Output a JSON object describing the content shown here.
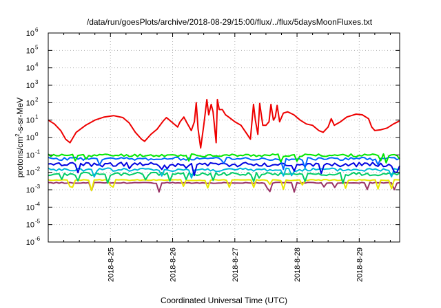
{
  "chart_data": {
    "type": "line",
    "title": "/data/run/goesPlots/archive/2018-08-29/15:00/flux/../flux/5daysMoonFluxes.txt",
    "xlabel": "Coordinated Universal Time (UTC)",
    "ylabel": {
      "prefix": "protons/cm",
      "sup": "2",
      "suffix": "-s-sr-MeV"
    },
    "yscale": "log",
    "ylim": [
      1e-06,
      1000000.0
    ],
    "xlim": [
      24.0,
      29.65
    ],
    "grid": true,
    "legend": "none",
    "y_ticks": [
      {
        "value": 1e-06,
        "base": "10",
        "exp": "-6"
      },
      {
        "value": 1e-05,
        "base": "10",
        "exp": "-5"
      },
      {
        "value": 0.0001,
        "base": "10",
        "exp": "-4"
      },
      {
        "value": 0.001,
        "base": "10",
        "exp": "-3"
      },
      {
        "value": 0.01,
        "base": "10",
        "exp": "-2"
      },
      {
        "value": 0.1,
        "base": "10",
        "exp": "-1"
      },
      {
        "value": 1,
        "base": "10",
        "exp": "0"
      },
      {
        "value": 10,
        "base": "10",
        "exp": "1"
      },
      {
        "value": 100,
        "base": "10",
        "exp": "2"
      },
      {
        "value": 1000.0,
        "base": "10",
        "exp": "3"
      },
      {
        "value": 10000.0,
        "base": "10",
        "exp": "4"
      },
      {
        "value": 100000.0,
        "base": "10",
        "exp": "5"
      },
      {
        "value": 1000000.0,
        "base": "10",
        "exp": "6"
      }
    ],
    "x_ticks": [
      {
        "value": 25.0,
        "label": "2018-8-25"
      },
      {
        "value": 26.0,
        "label": "2018-8-26"
      },
      {
        "value": 27.0,
        "label": "2018-8-27"
      },
      {
        "value": 28.0,
        "label": "2018-8-28"
      },
      {
        "value": 29.0,
        "label": "2018-8-29"
      }
    ],
    "series": [
      {
        "color": "#ee0000",
        "kind": "red",
        "points": [
          [
            24.0,
            10
          ],
          [
            24.1,
            6
          ],
          [
            24.2,
            2.5
          ],
          [
            24.28,
            0.8
          ],
          [
            24.35,
            0.5
          ],
          [
            24.45,
            2
          ],
          [
            24.6,
            5
          ],
          [
            24.75,
            10
          ],
          [
            24.9,
            15
          ],
          [
            25.05,
            18
          ],
          [
            25.2,
            14
          ],
          [
            25.3,
            7
          ],
          [
            25.4,
            2
          ],
          [
            25.5,
            0.8
          ],
          [
            25.55,
            0.6
          ],
          [
            25.65,
            1.5
          ],
          [
            25.75,
            3
          ],
          [
            25.85,
            9
          ],
          [
            25.9,
            14
          ],
          [
            25.95,
            10
          ],
          [
            26.0,
            7
          ],
          [
            26.08,
            4
          ],
          [
            26.12,
            8
          ],
          [
            26.18,
            15
          ],
          [
            26.22,
            8
          ],
          [
            26.3,
            2.5
          ],
          [
            26.35,
            8
          ],
          [
            26.38,
            100
          ],
          [
            26.41,
            3
          ],
          [
            26.45,
            0.25
          ],
          [
            26.5,
            5
          ],
          [
            26.55,
            150
          ],
          [
            26.58,
            20
          ],
          [
            26.62,
            80
          ],
          [
            26.65,
            30
          ],
          [
            26.7,
            0.5
          ],
          [
            26.72,
            150
          ],
          [
            26.75,
            40
          ],
          [
            26.8,
            40
          ],
          [
            26.85,
            20
          ],
          [
            26.9,
            15
          ],
          [
            27.0,
            8
          ],
          [
            27.1,
            5
          ],
          [
            27.2,
            1.5
          ],
          [
            27.25,
            0.8
          ],
          [
            27.3,
            80
          ],
          [
            27.33,
            10
          ],
          [
            27.37,
            1.5
          ],
          [
            27.4,
            90
          ],
          [
            27.45,
            5
          ],
          [
            27.5,
            5
          ],
          [
            27.55,
            8
          ],
          [
            27.58,
            80
          ],
          [
            27.62,
            10
          ],
          [
            27.65,
            15
          ],
          [
            27.68,
            70
          ],
          [
            27.72,
            8
          ],
          [
            27.78,
            25
          ],
          [
            27.85,
            30
          ],
          [
            27.95,
            20
          ],
          [
            28.05,
            10
          ],
          [
            28.15,
            6
          ],
          [
            28.25,
            5
          ],
          [
            28.35,
            2.5
          ],
          [
            28.42,
            2
          ],
          [
            28.5,
            4
          ],
          [
            28.55,
            12
          ],
          [
            28.6,
            5
          ],
          [
            28.7,
            8
          ],
          [
            28.8,
            15
          ],
          [
            28.95,
            22
          ],
          [
            29.05,
            20
          ],
          [
            29.15,
            12
          ],
          [
            29.2,
            4
          ],
          [
            29.25,
            2.5
          ],
          [
            29.35,
            2.8
          ],
          [
            29.45,
            3.5
          ],
          [
            29.55,
            6
          ],
          [
            29.65,
            9
          ]
        ]
      },
      {
        "color": "#00e800",
        "kind": "noisy",
        "mean": 0.095,
        "amp": 0.16,
        "seed": 11
      },
      {
        "color": "#0066ff",
        "kind": "noisy",
        "mean": 0.06,
        "amp": 0.18,
        "seed": 23
      },
      {
        "color": "#0000e0",
        "kind": "noisy",
        "mean": 0.028,
        "amp": 0.25,
        "seed": 37
      },
      {
        "color": "#00b8d8",
        "kind": "noisy",
        "mean": 0.014,
        "amp": 0.2,
        "seed": 41
      },
      {
        "color": "#00cc66",
        "kind": "noisy",
        "mean": 0.008,
        "amp": 0.18,
        "seed": 53
      },
      {
        "color": "#e8e800",
        "kind": "noisy",
        "mean": 0.0036,
        "amp": 0.06,
        "seed": 67
      },
      {
        "color": "#993366",
        "kind": "noisy",
        "mean": 0.0025,
        "amp": 0.06,
        "seed": 79
      }
    ]
  }
}
